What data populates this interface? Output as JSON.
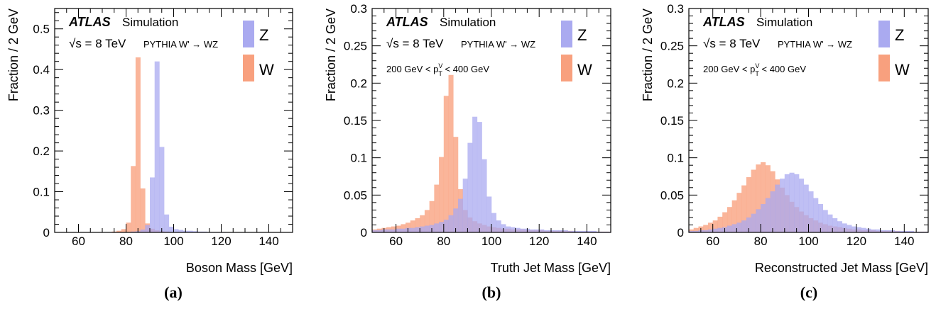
{
  "colors": {
    "z_fill": "#aaaaf0",
    "w_fill": "#f8a07e",
    "overlap": "#c4889a"
  },
  "chart_data": [
    {
      "type": "bar",
      "panel_label": "(a)",
      "atlas_label": "ATLAS",
      "sim_label": "Simulation",
      "energy_label": "√s = 8 TeV",
      "process_label": "PYTHIA W' → WZ",
      "selection_label": "",
      "ylabel": "Fraction / 2 GeV",
      "xlabel": "Boson Mass [GeV]",
      "xlim": [
        50,
        150
      ],
      "ylim": [
        0,
        0.55
      ],
      "yticks": [
        0,
        0.1,
        0.2,
        0.3,
        0.4,
        0.5
      ],
      "yticklabels": [
        "0",
        "0.1",
        "0.2",
        "0.3",
        "0.4",
        "0.5"
      ],
      "xticks": [
        60,
        80,
        100,
        120,
        140
      ],
      "bin_edges_start": 50,
      "bin_width": 2,
      "legend": [
        "Z",
        "W"
      ],
      "series": [
        {
          "name": "Z",
          "values": [
            0,
            0,
            0,
            0,
            0,
            0,
            0,
            0,
            0,
            0,
            0,
            0,
            0,
            0,
            0,
            0.001,
            0.002,
            0.003,
            0.007,
            0.018,
            0.135,
            0.42,
            0.21,
            0.044,
            0.014,
            0.008,
            0.006,
            0.004,
            0.004,
            0.003,
            0.002,
            0.002,
            0.001,
            0.001,
            0.001,
            0.001,
            0,
            0,
            0,
            0,
            0,
            0,
            0,
            0,
            0,
            0,
            0,
            0,
            0,
            0
          ]
        },
        {
          "name": "W",
          "values": [
            0,
            0,
            0,
            0,
            0,
            0,
            0,
            0,
            0,
            0,
            0,
            0,
            0.002,
            0.004,
            0.008,
            0.024,
            0.163,
            0.43,
            0.108,
            0.022,
            0.009,
            0.005,
            0.003,
            0.002,
            0.001,
            0.001,
            0.001,
            0,
            0,
            0,
            0,
            0,
            0,
            0,
            0,
            0,
            0,
            0,
            0,
            0,
            0,
            0,
            0,
            0,
            0,
            0,
            0,
            0,
            0,
            0
          ]
        }
      ]
    },
    {
      "type": "bar",
      "panel_label": "(b)",
      "atlas_label": "ATLAS",
      "sim_label": "Simulation",
      "energy_label": "√s = 8 TeV",
      "process_label": "PYTHIA W' → WZ",
      "selection_label": "200 GeV < p",
      "selection_sup": "V",
      "selection_sub": "T",
      "selection_tail": " < 400 GeV",
      "ylabel": "Fraction / 2 GeV",
      "xlabel": "Truth Jet Mass [GeV]",
      "xlim": [
        50,
        150
      ],
      "ylim": [
        0,
        0.3
      ],
      "yticks": [
        0,
        0.05,
        0.1,
        0.15,
        0.2,
        0.25,
        0.3
      ],
      "yticklabels": [
        "0",
        "0.05",
        "0.1",
        "0.15",
        "0.2",
        "0.25",
        "0.3"
      ],
      "xticks": [
        60,
        80,
        100,
        120,
        140
      ],
      "bin_edges_start": 50,
      "bin_width": 2,
      "legend": [
        "Z",
        "W"
      ],
      "series": [
        {
          "name": "Z",
          "values": [
            0.003,
            0.003,
            0.004,
            0.004,
            0.004,
            0.005,
            0.005,
            0.006,
            0.006,
            0.007,
            0.008,
            0.009,
            0.01,
            0.012,
            0.014,
            0.017,
            0.023,
            0.032,
            0.045,
            0.072,
            0.12,
            0.155,
            0.148,
            0.098,
            0.048,
            0.026,
            0.016,
            0.011,
            0.008,
            0.007,
            0.006,
            0.005,
            0.005,
            0.004,
            0.004,
            0.004,
            0.003,
            0.003,
            0.003,
            0.003,
            0.003,
            0.002,
            0.002,
            0.002,
            0.002,
            0.002,
            0.002,
            0.001,
            0.001,
            0.001
          ]
        },
        {
          "name": "W",
          "values": [
            0.004,
            0.005,
            0.006,
            0.007,
            0.008,
            0.009,
            0.011,
            0.013,
            0.016,
            0.019,
            0.023,
            0.03,
            0.042,
            0.064,
            0.101,
            0.183,
            0.211,
            0.128,
            0.058,
            0.03,
            0.02,
            0.015,
            0.012,
            0.01,
            0.008,
            0.007,
            0.006,
            0.005,
            0.005,
            0.004,
            0.004,
            0.004,
            0.003,
            0.003,
            0.003,
            0.003,
            0.002,
            0.002,
            0.002,
            0.002,
            0.002,
            0.002,
            0.001,
            0.001,
            0.001,
            0.001,
            0.001,
            0.001,
            0.001,
            0.001
          ]
        }
      ]
    },
    {
      "type": "bar",
      "panel_label": "(c)",
      "atlas_label": "ATLAS",
      "sim_label": "Simulation",
      "energy_label": "√s = 8 TeV",
      "process_label": "PYTHIA W' → WZ",
      "selection_label": "200 GeV < p",
      "selection_sup": "V",
      "selection_sub": "T",
      "selection_tail": " < 400 GeV",
      "ylabel": "Fraction / 2 GeV",
      "xlabel": "Reconstructed Jet Mass [GeV]",
      "xlim": [
        50,
        150
      ],
      "ylim": [
        0,
        0.3
      ],
      "yticks": [
        0,
        0.05,
        0.1,
        0.15,
        0.2,
        0.25,
        0.3
      ],
      "yticklabels": [
        "0",
        "0.05",
        "0.1",
        "0.15",
        "0.2",
        "0.25",
        "0.3"
      ],
      "xticks": [
        60,
        80,
        100,
        120,
        140
      ],
      "bin_edges_start": 50,
      "bin_width": 2,
      "legend": [
        "Z",
        "W"
      ],
      "series": [
        {
          "name": "Z",
          "values": [
            0.002,
            0.002,
            0.003,
            0.003,
            0.004,
            0.005,
            0.006,
            0.007,
            0.009,
            0.011,
            0.013,
            0.016,
            0.02,
            0.025,
            0.031,
            0.038,
            0.046,
            0.055,
            0.064,
            0.072,
            0.078,
            0.08,
            0.078,
            0.072,
            0.064,
            0.055,
            0.046,
            0.038,
            0.03,
            0.024,
            0.019,
            0.015,
            0.012,
            0.01,
            0.008,
            0.007,
            0.006,
            0.005,
            0.004,
            0.004,
            0.003,
            0.003,
            0.003,
            0.002,
            0.002,
            0.002,
            0.002,
            0.001,
            0.001,
            0.001
          ]
        },
        {
          "name": "W",
          "values": [
            0.004,
            0.006,
            0.008,
            0.01,
            0.013,
            0.016,
            0.021,
            0.027,
            0.034,
            0.043,
            0.053,
            0.063,
            0.074,
            0.084,
            0.091,
            0.094,
            0.09,
            0.082,
            0.071,
            0.06,
            0.05,
            0.041,
            0.034,
            0.028,
            0.023,
            0.019,
            0.016,
            0.013,
            0.011,
            0.009,
            0.008,
            0.007,
            0.006,
            0.005,
            0.004,
            0.004,
            0.003,
            0.003,
            0.003,
            0.002,
            0.002,
            0.002,
            0.002,
            0.002,
            0.001,
            0.001,
            0.001,
            0.001,
            0.001,
            0.001
          ]
        }
      ]
    }
  ]
}
